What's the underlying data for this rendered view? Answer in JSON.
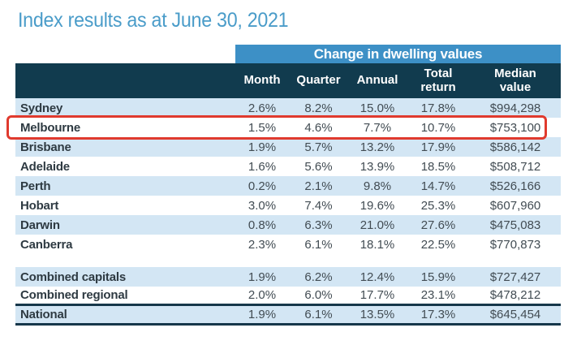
{
  "title": "Index results as at June 30, 2021",
  "colors": {
    "title_blue": "#4a9cc9",
    "band_blue": "#3d90c6",
    "header_dark": "#113b4e",
    "stripe_blue": "#d3e6f4",
    "highlight_red": "#e03a2e",
    "border_dark": "#16374a",
    "value_text": "#424c53",
    "label_text": "#2e3a42"
  },
  "chart_data": {
    "type": "table",
    "title": "Index results as at June 30, 2021",
    "group_header": "Change in dwelling values",
    "columns": [
      "Month",
      "Quarter",
      "Annual",
      "Total return",
      "Median value"
    ],
    "city_rows": [
      {
        "label": "Sydney",
        "values": [
          "2.6%",
          "8.2%",
          "15.0%",
          "17.8%",
          "$994,298"
        ],
        "highlighted": false
      },
      {
        "label": "Melbourne",
        "values": [
          "1.5%",
          "4.6%",
          "7.7%",
          "10.7%",
          "$753,100"
        ],
        "highlighted": true
      },
      {
        "label": "Brisbane",
        "values": [
          "1.9%",
          "5.7%",
          "13.2%",
          "17.9%",
          "$586,142"
        ],
        "highlighted": false
      },
      {
        "label": "Adelaide",
        "values": [
          "1.6%",
          "5.6%",
          "13.9%",
          "18.5%",
          "$508,712"
        ],
        "highlighted": false
      },
      {
        "label": "Perth",
        "values": [
          "0.2%",
          "2.1%",
          "9.8%",
          "14.7%",
          "$526,166"
        ],
        "highlighted": false
      },
      {
        "label": "Hobart",
        "values": [
          "3.0%",
          "7.4%",
          "19.6%",
          "25.3%",
          "$607,960"
        ],
        "highlighted": false
      },
      {
        "label": "Darwin",
        "values": [
          "0.8%",
          "6.3%",
          "21.0%",
          "27.6%",
          "$475,083"
        ],
        "highlighted": false
      },
      {
        "label": "Canberra",
        "values": [
          "2.3%",
          "6.1%",
          "18.1%",
          "22.5%",
          "$770,873"
        ],
        "highlighted": false
      }
    ],
    "summary_rows": [
      {
        "label": "Combined capitals",
        "values": [
          "1.9%",
          "6.2%",
          "12.4%",
          "15.9%",
          "$727,427"
        ],
        "highlighted": false
      },
      {
        "label": "Combined regional",
        "values": [
          "2.0%",
          "6.0%",
          "17.7%",
          "23.1%",
          "$478,212"
        ],
        "highlighted": false
      },
      {
        "label": "National",
        "values": [
          "1.9%",
          "6.1%",
          "13.5%",
          "17.3%",
          "$645,454"
        ],
        "highlighted": false
      }
    ],
    "highlighted_row": "Melbourne"
  }
}
